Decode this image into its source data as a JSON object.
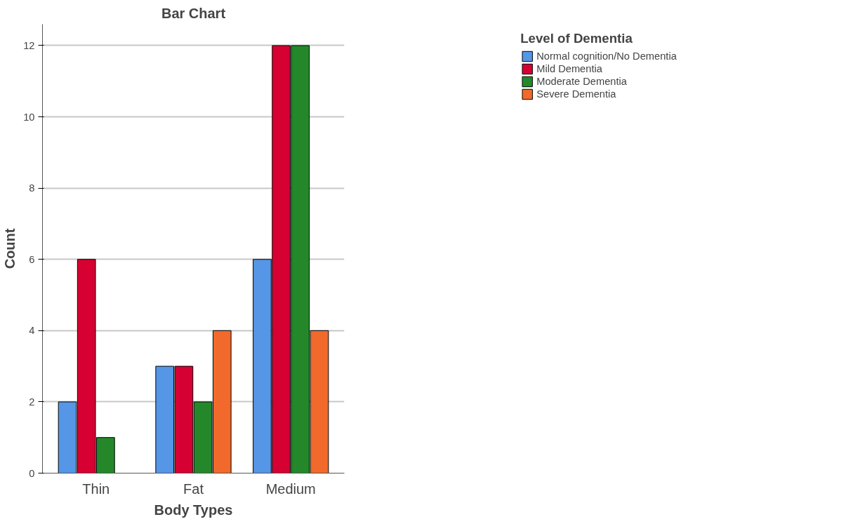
{
  "chart_data": {
    "type": "bar",
    "title": "Bar Chart",
    "xlabel": "Body Types",
    "ylabel": "Count",
    "legend_title": "Level of Dementia",
    "categories": [
      "Thin",
      "Fat",
      "Medium"
    ],
    "series": [
      {
        "name": "Normal cognition/No Dementia",
        "color": "#5596e6",
        "values": [
          2,
          3,
          6
        ]
      },
      {
        "name": "Mild Dementia",
        "color": "#d60032",
        "values": [
          6,
          3,
          12
        ]
      },
      {
        "name": "Moderate Dementia",
        "color": "#24882b",
        "values": [
          1,
          2,
          12
        ]
      },
      {
        "name": "Severe Dementia",
        "color": "#f16a2b",
        "values": [
          null,
          4,
          4
        ]
      }
    ],
    "ylim": [
      0,
      12.6
    ],
    "yticks": [
      0,
      2,
      4,
      6,
      8,
      10,
      12
    ],
    "grid": "y",
    "legend": "top right"
  }
}
